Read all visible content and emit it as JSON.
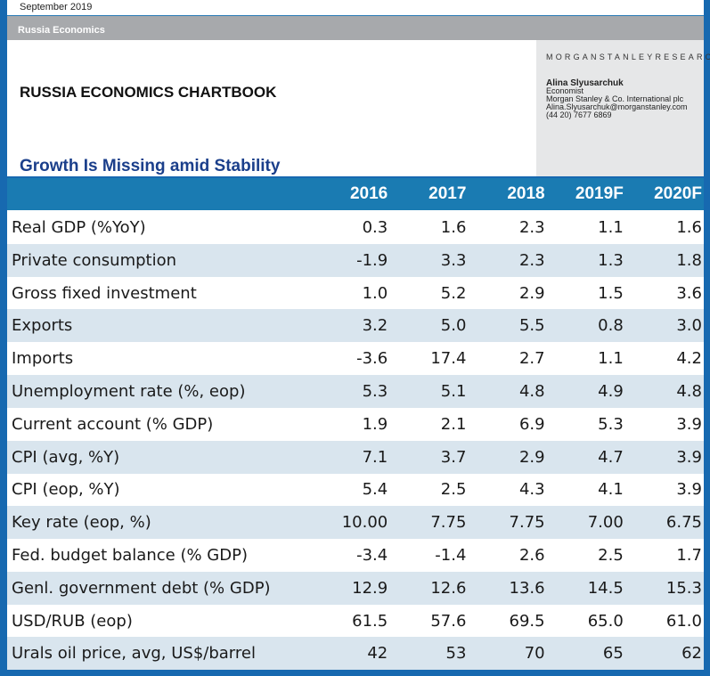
{
  "header": {
    "date": "September 2019",
    "section": "Russia Economics",
    "brand": "MORGANSTANLEYRESEARCH",
    "author": {
      "name": "Alina Slyusarchuk",
      "role": "Economist",
      "company": "Morgan Stanley & Co. International plc",
      "email": "Alina.Slyusarchuk@morganstanley.com",
      "phone": "(44 20) 7677 6869"
    },
    "title": "RUSSIA ECONOMICS CHARTBOOK",
    "subtitle": "Growth Is Missing amid Stability"
  },
  "table": {
    "columns": [
      "2016",
      "2017",
      "2018",
      "2019F",
      "2020F"
    ],
    "rows": [
      {
        "label": "Real GDP (%YoY)",
        "values": [
          "0.3",
          "1.6",
          "2.3",
          "1.1",
          "1.6"
        ]
      },
      {
        "label": "Private consumption",
        "values": [
          "-1.9",
          "3.3",
          "2.3",
          "1.3",
          "1.8"
        ]
      },
      {
        "label": "Gross fixed investment",
        "values": [
          "1.0",
          "5.2",
          "2.9",
          "1.5",
          "3.6"
        ]
      },
      {
        "label": "Exports",
        "values": [
          "3.2",
          "5.0",
          "5.5",
          "0.8",
          "3.0"
        ]
      },
      {
        "label": "Imports",
        "values": [
          "-3.6",
          "17.4",
          "2.7",
          "1.1",
          "4.2"
        ]
      },
      {
        "label": "Unemployment rate (%, eop)",
        "values": [
          "5.3",
          "5.1",
          "4.8",
          "4.9",
          "4.8"
        ]
      },
      {
        "label": "Current account (% GDP)",
        "values": [
          "1.9",
          "2.1",
          "6.9",
          "5.3",
          "3.9"
        ]
      },
      {
        "label": "CPI (avg, %Y)",
        "values": [
          "7.1",
          "3.7",
          "2.9",
          "4.7",
          "3.9"
        ]
      },
      {
        "label": "CPI (eop, %Y)",
        "values": [
          "5.4",
          "2.5",
          "4.3",
          "4.1",
          "3.9"
        ]
      },
      {
        "label": "Key rate (eop, %)",
        "values": [
          "10.00",
          "7.75",
          "7.75",
          "7.00",
          "6.75"
        ]
      },
      {
        "label": "Fed. budget balance (% GDP)",
        "values": [
          "-3.4",
          "-1.4",
          "2.6",
          "2.5",
          "1.7"
        ]
      },
      {
        "label": "Genl. government debt (% GDP)",
        "values": [
          "12.9",
          "12.6",
          "13.6",
          "14.5",
          "15.3"
        ]
      },
      {
        "label": "USD/RUB (eop)",
        "values": [
          "61.5",
          "57.6",
          "69.5",
          "65.0",
          "61.0"
        ]
      },
      {
        "label": "Urals oil price, avg, US$/barrel",
        "values": [
          "42",
          "53",
          "70",
          "65",
          "62"
        ]
      }
    ]
  },
  "colors": {
    "frame": "#1769b0",
    "header_row": "#1a7bb2",
    "alt_row": "#d9e5ee",
    "subtitle": "#1b3f8b",
    "gray_bar": "#a7a9ac"
  }
}
